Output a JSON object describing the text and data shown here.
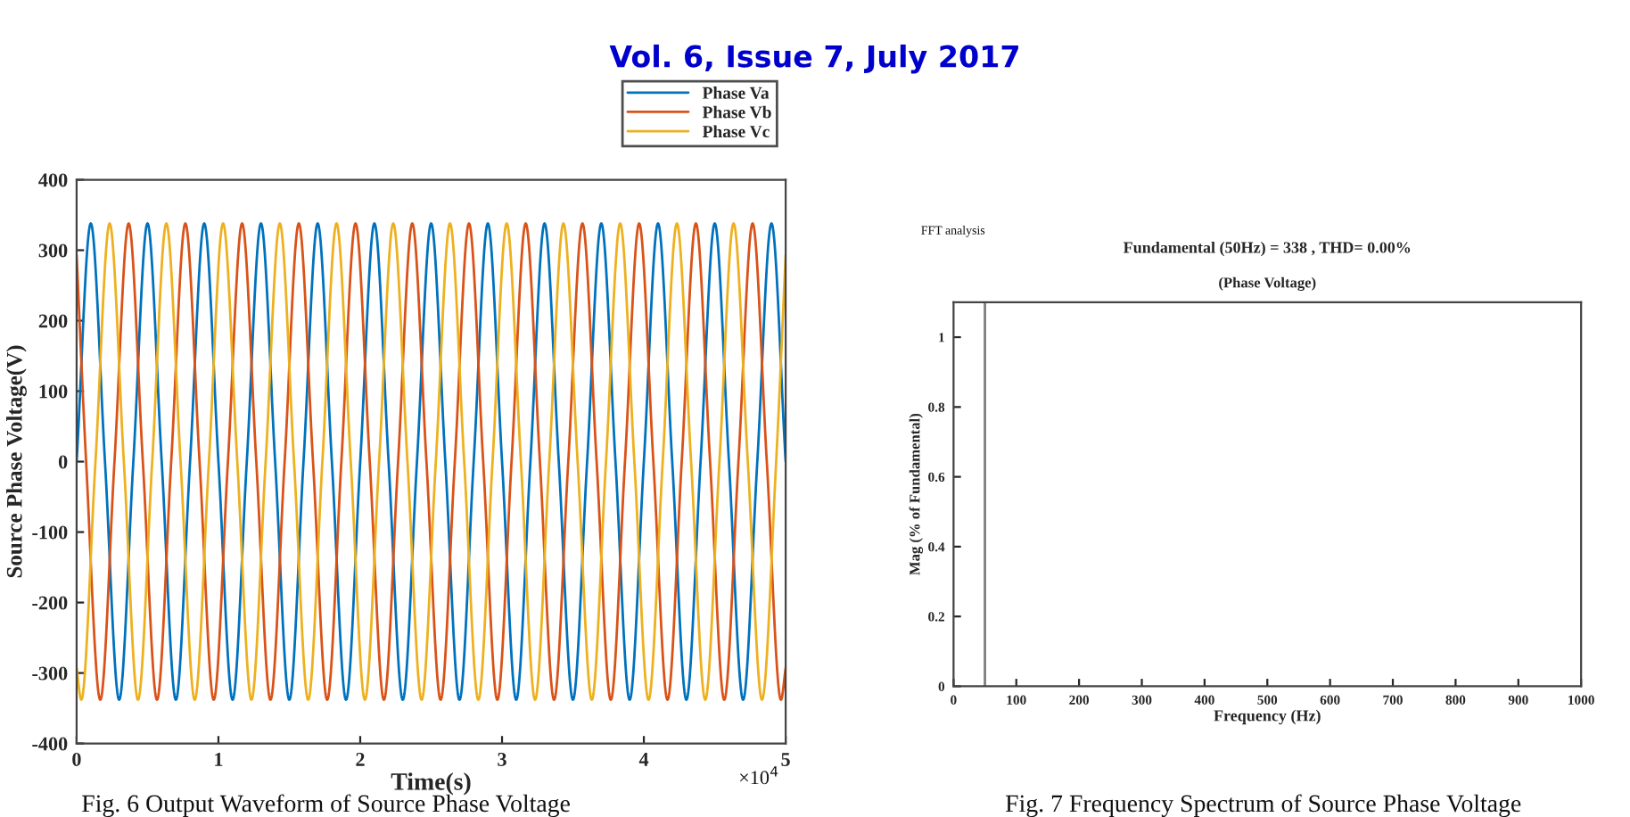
{
  "chart_data": [
    {
      "type": "line",
      "xlabel": "Time(s)",
      "ylabel": "Source Phase Voltage(V)",
      "annotations": [
        "×10$^{4}$",
        "Fig. 6 Output Waveform of Source Phase Voltage",
        "Vol. 6, Issue 7, July 2017"
      ],
      "xlim": [
        0,
        5
      ],
      "ylim": [
        -400,
        400
      ],
      "xticks": [
        0,
        1,
        2,
        3,
        4,
        5
      ],
      "yticks": [
        -400,
        -300,
        -200,
        -100,
        0,
        100,
        200,
        300,
        400
      ],
      "legend": "top right",
      "series": [
        {
          "name": "Phase Va",
          "color": "#0072bd",
          "x": [
            0,
            0.1,
            0.2,
            0.3,
            0.4,
            0.5,
            0.6,
            0.7,
            0.8,
            0.9,
            1.0,
            1.1,
            1.2,
            1.3,
            1.4,
            1.5,
            1.6,
            1.7,
            1.8,
            1.9,
            2.0,
            2.1,
            2.2,
            2.3,
            2.4,
            2.5,
            2.6,
            2.7,
            2.8,
            2.9,
            3.0,
            3.1,
            3.2,
            3.3,
            3.4,
            3.5,
            3.6,
            3.7,
            3.8,
            3.9,
            4.0,
            4.1,
            4.2,
            4.3,
            4.4,
            4.5,
            4.6,
            4.7,
            4.8,
            4.9,
            5.0
          ],
          "values": [
            0,
            338,
            0,
            -338,
            0,
            338,
            0,
            -338,
            0,
            338,
            0,
            -338,
            0,
            338,
            0,
            -338,
            0,
            338,
            0,
            -338,
            0,
            338,
            0,
            -338,
            0,
            338,
            0,
            -338,
            0,
            338,
            0,
            -338,
            0,
            338,
            0,
            -338,
            0,
            338,
            0,
            -338,
            0,
            338,
            0,
            -338,
            0,
            338,
            0,
            -338,
            0,
            338,
            0
          ]
        },
        {
          "name": "Phase Vb",
          "color": "#d95319",
          "x": [
            0,
            0.067,
            0.167,
            0.267,
            0.367,
            0.467,
            0.567,
            0.667,
            0.767,
            0.867,
            0.967,
            1.067,
            1.167,
            1.267,
            1.367,
            1.467,
            1.567,
            1.667,
            1.767,
            1.867,
            1.967,
            2.067,
            2.167,
            2.267,
            2.367,
            2.467,
            2.567,
            2.667,
            2.767,
            2.867,
            2.967,
            3.067,
            3.167,
            3.267,
            3.367,
            3.467,
            3.567,
            3.667,
            3.767,
            3.867,
            3.967,
            4.067,
            4.167,
            4.267,
            4.367,
            4.467,
            4.567,
            4.667,
            4.767,
            4.867,
            4.967,
            5.0
          ],
          "values": [
            293,
            0,
            -338,
            0,
            338,
            0,
            -338,
            0,
            338,
            0,
            -338,
            0,
            338,
            0,
            -338,
            0,
            338,
            0,
            -338,
            0,
            338,
            0,
            -338,
            0,
            338,
            0,
            -338,
            0,
            338,
            0,
            -338,
            0,
            338,
            0,
            -338,
            0,
            338,
            0,
            -338,
            0,
            338,
            0,
            -338,
            0,
            338,
            0,
            -338,
            0,
            338,
            0,
            -338,
            -293
          ]
        },
        {
          "name": "Phase Vc",
          "color": "#edb120",
          "x": [
            0,
            0.033,
            0.133,
            0.233,
            0.333,
            0.433,
            0.533,
            0.633,
            0.733,
            0.833,
            0.933,
            1.033,
            1.133,
            1.233,
            1.333,
            1.433,
            1.533,
            1.633,
            1.733,
            1.833,
            1.933,
            2.033,
            2.133,
            2.233,
            2.333,
            2.433,
            2.533,
            2.633,
            2.733,
            2.833,
            2.933,
            3.033,
            3.133,
            3.233,
            3.333,
            3.433,
            3.533,
            3.633,
            3.733,
            3.833,
            3.933,
            4.033,
            4.133,
            4.233,
            4.333,
            4.433,
            4.533,
            4.633,
            4.733,
            4.833,
            4.933,
            5.0
          ],
          "values": [
            -293,
            -338,
            0,
            338,
            0,
            -338,
            0,
            338,
            0,
            -338,
            0,
            338,
            0,
            -338,
            0,
            338,
            0,
            -338,
            0,
            338,
            0,
            -338,
            0,
            338,
            0,
            -338,
            0,
            338,
            0,
            -338,
            0,
            338,
            0,
            -338,
            0,
            338,
            0,
            -338,
            0,
            338,
            0,
            -338,
            0,
            338,
            0,
            -338,
            0,
            338,
            0,
            -338,
            0,
            293
          ]
        }
      ]
    },
    {
      "type": "bar",
      "title": "Fundamental (50Hz) = 338 , THD= 0.00%",
      "subtitle": "(Phase Voltage)",
      "xlabel": "Frequency (Hz)",
      "ylabel": "Mag (% of Fundamental)",
      "annotations": [
        "FFT analysis",
        "Fig. 7 Frequency Spectrum of Source Phase Voltage"
      ],
      "x": [
        50
      ],
      "values": [
        1.1
      ],
      "color": "#808080",
      "xlim": [
        0,
        1000
      ],
      "ylim": [
        0,
        1.1
      ],
      "xticks": [
        0,
        100,
        200,
        300,
        400,
        500,
        600,
        700,
        800,
        900,
        1000
      ],
      "yticks": [
        0,
        0.2,
        0.4,
        0.6,
        0.8,
        1
      ]
    }
  ]
}
